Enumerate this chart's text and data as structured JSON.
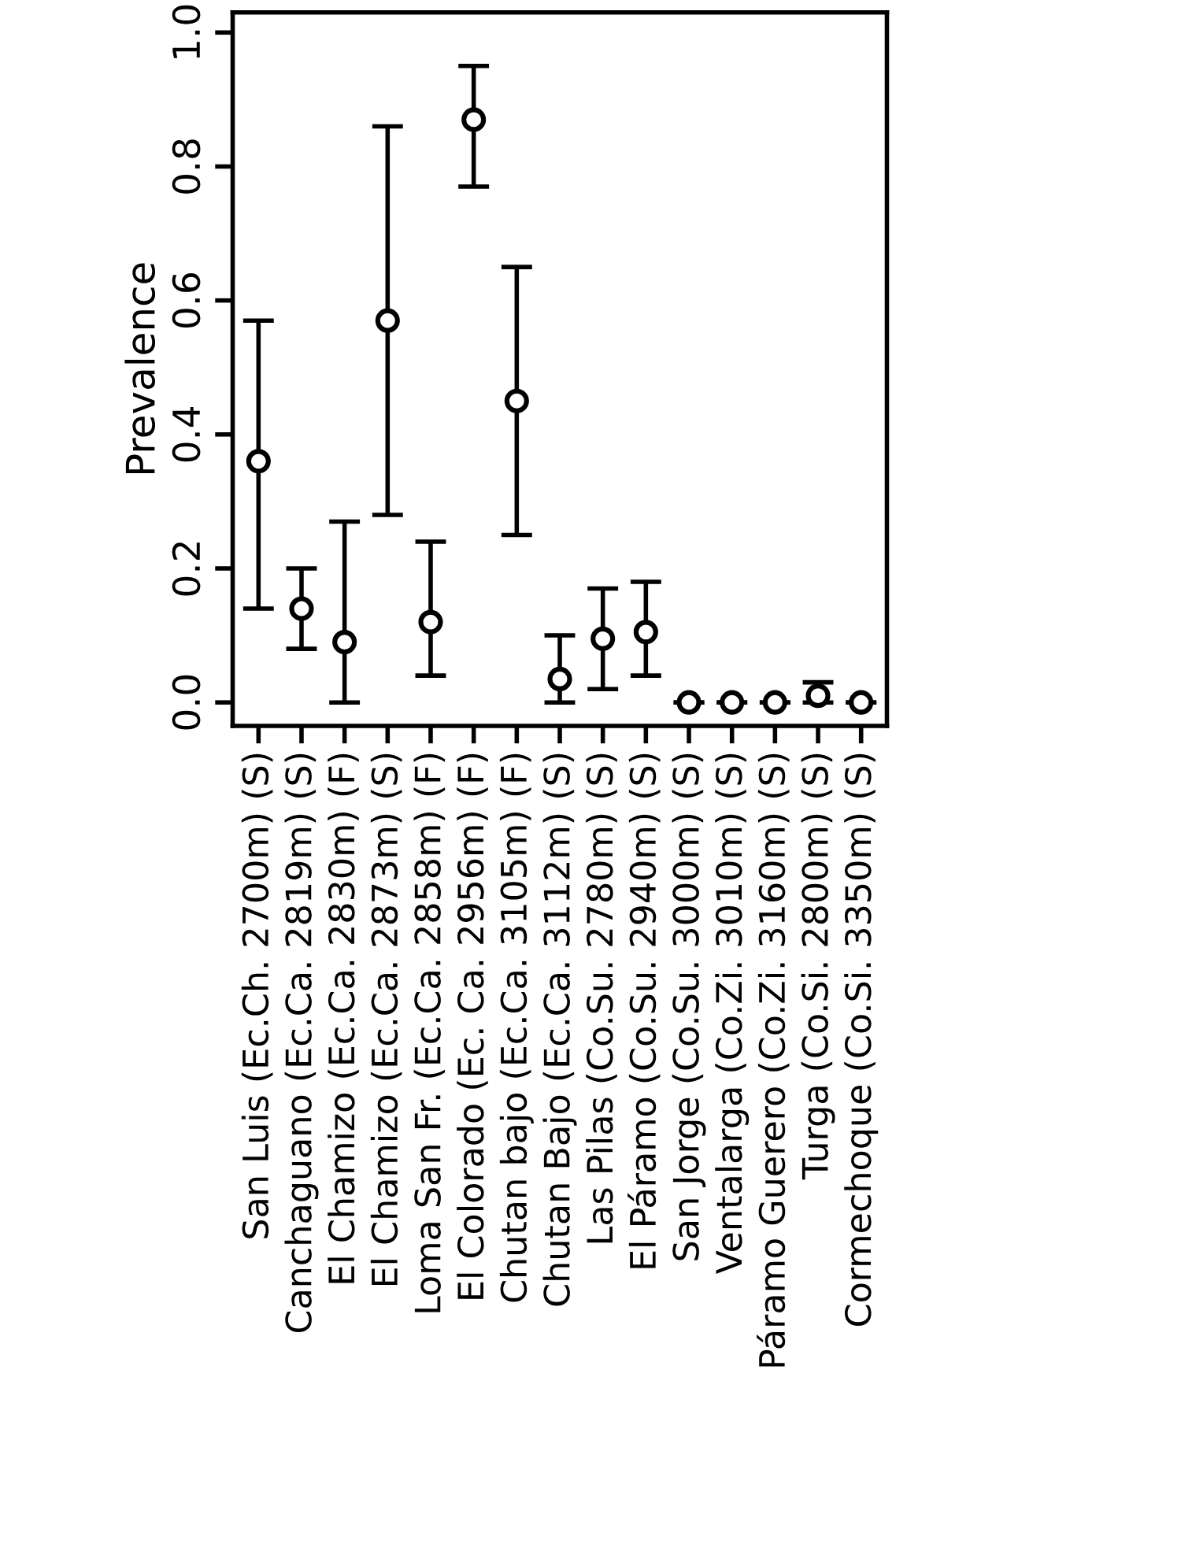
{
  "chart_data": {
    "type": "scatter",
    "ylabel": "Prevalence",
    "categories": [
      "San Luis (Ec.Ch. 2700m) (S)",
      "Canchaguano (Ec.Ca. 2819m) (S)",
      "El Chamizo (Ec.Ca. 2830m) (F)",
      "El Chamizo (Ec.Ca. 2873m) (S)",
      "Loma San Fr. (Ec.Ca. 2858m) (F)",
      "El Colorado (Ec. Ca. 2956m) (F)",
      "Chutan bajo (Ec.Ca. 3105m) (F)",
      "Chutan Bajo (Ec.Ca. 3112m) (S)",
      "Las Pilas (Co.Su. 2780m) (S)",
      "El Páramo (Co.Su. 2940m) (S)",
      "San Jorge (Co.Su. 3000m) (S)",
      "Ventalarga (Co.Zi. 3010m) (S)",
      "Páramo Guerero (Co.Zi. 3160m) (S)",
      "Turga (Co.Si. 2800m) (S)",
      "Cormechoque (Co.Si. 3350m) (S)"
    ],
    "values": [
      0.36,
      0.14,
      0.09,
      0.57,
      0.12,
      0.87,
      0.45,
      0.035,
      0.095,
      0.105,
      0.0,
      0.0,
      0.0,
      0.01,
      0.0
    ],
    "errors": [
      [
        0.14,
        0.57
      ],
      [
        0.08,
        0.2
      ],
      [
        0.0,
        0.27
      ],
      [
        0.28,
        0.86
      ],
      [
        0.04,
        0.24
      ],
      [
        0.77,
        0.95
      ],
      [
        0.25,
        0.65
      ],
      [
        0.0,
        0.1
      ],
      [
        0.02,
        0.17
      ],
      [
        0.04,
        0.18
      ],
      [
        0.0,
        0.0
      ],
      [
        0.0,
        0.0
      ],
      [
        0.0,
        0.0
      ],
      [
        0.0,
        0.03
      ],
      [
        0.0,
        0.0
      ]
    ],
    "color": "#000000",
    "marker": "circle",
    "ylim": [
      -0.035,
      1.03
    ],
    "yticks": [
      {
        "value": 0.0,
        "label": "0.0"
      },
      {
        "value": 0.2,
        "label": "0.2"
      },
      {
        "value": 0.4,
        "label": "0.4"
      },
      {
        "value": 0.6,
        "label": "0.6"
      },
      {
        "value": 0.8,
        "label": "0.8"
      },
      {
        "value": 1.0,
        "label": "1.0"
      }
    ],
    "grid": false
  }
}
